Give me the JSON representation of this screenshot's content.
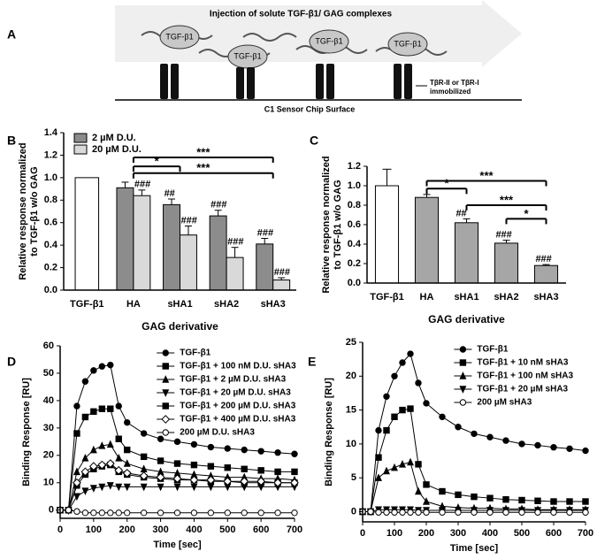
{
  "diagram": {
    "label": "A",
    "title": "Injection of solute TGF-β1/ GAG complexes",
    "molecules": [
      "TGF-β1",
      "TGF-β1",
      "TGF-β1",
      "TGF-β1"
    ],
    "receptor": [
      "TβR-II or TβR-I",
      "immobilized"
    ],
    "surface": "C1 Sensor Chip Surface"
  },
  "chart_data": [
    {
      "type": "bar",
      "label": "B",
      "ylabel": [
        "Relative response normalized",
        "to TGF-β1 w/o GAG"
      ],
      "xlabel": "GAG derivative",
      "categories": [
        "TGF-β1",
        "HA",
        "sHA1",
        "sHA2",
        "sHA3"
      ],
      "reference": {
        "value": 1.0,
        "color": "#ffffff"
      },
      "series": [
        {
          "name": "2 µM D.U.",
          "color": "#8c8c8c",
          "values": [
            null,
            0.91,
            0.76,
            0.66,
            0.41
          ],
          "errors": [
            null,
            0.05,
            0.05,
            0.05,
            0.05
          ],
          "annotations": [
            null,
            null,
            "##",
            "###",
            "###"
          ]
        },
        {
          "name": "20 µM D.U.",
          "color": "#d9d9d9",
          "values": [
            null,
            0.84,
            0.49,
            0.29,
            0.09
          ],
          "errors": [
            null,
            0.05,
            0.08,
            0.09,
            0.02
          ],
          "annotations": [
            null,
            "###",
            "###",
            "###",
            "###"
          ]
        }
      ],
      "significance": [
        "*",
        "***",
        "***"
      ],
      "ylim": [
        0,
        1.4
      ],
      "yticks": [
        {
          "value": 0,
          "label": "0.0"
        },
        {
          "value": 0.2,
          "label": "0.2"
        },
        {
          "value": 0.4,
          "label": "0.4"
        },
        {
          "value": 0.6,
          "label": "0.6"
        },
        {
          "value": 0.8,
          "label": "0.8"
        },
        {
          "value": 1.0,
          "label": "1.0"
        },
        {
          "value": 1.2,
          "label": "1.2"
        },
        {
          "value": 1.4,
          "label": "1.4"
        }
      ]
    },
    {
      "type": "bar",
      "label": "C",
      "ylabel": [
        "Relative response normalized",
        "to TGF-β1 w/o GAG"
      ],
      "xlabel": "GAG derivative",
      "categories": [
        "TGF-β1",
        "HA",
        "sHA1",
        "sHA2",
        "sHA3"
      ],
      "reference": {
        "value": 1.0,
        "error": 0.17,
        "color": "#ffffff"
      },
      "series": [
        {
          "color": "#a6a6a6",
          "values": [
            null,
            0.88,
            0.62,
            0.41,
            0.18
          ],
          "errors": [
            null,
            0.03,
            0.04,
            0.03,
            0.01
          ],
          "annotations": [
            null,
            null,
            "##",
            "###",
            "###"
          ]
        }
      ],
      "significance": [
        "***",
        "*",
        "***",
        "*"
      ],
      "ylim": [
        0,
        1.2
      ],
      "yticks": [
        {
          "value": 0,
          "label": "0.0"
        },
        {
          "value": 0.2,
          "label": "0.2"
        },
        {
          "value": 0.4,
          "label": "0.4"
        },
        {
          "value": 0.6,
          "label": "0.6"
        },
        {
          "value": 0.8,
          "label": "0.8"
        },
        {
          "value": 1.0,
          "label": "1.0"
        },
        {
          "value": 1.2,
          "label": "1.2"
        }
      ]
    },
    {
      "type": "line",
      "label": "D",
      "ylabel": "Binding Response [RU]",
      "xlabel": "Time [sec]",
      "x": [
        0,
        25,
        50,
        75,
        100,
        125,
        150,
        175,
        200,
        250,
        300,
        350,
        400,
        450,
        500,
        550,
        600,
        650,
        700
      ],
      "series": [
        {
          "name": "TGF-β1",
          "color": "#000000",
          "marker": "circle",
          "values": [
            0,
            0,
            38,
            47,
            51,
            52.5,
            53,
            38,
            32,
            28,
            26,
            25,
            24,
            23,
            22.5,
            22,
            21.5,
            21,
            20.5
          ]
        },
        {
          "name": "TGF-β1 + 100 nM D.U. sHA3",
          "color": "#000000",
          "marker": "square",
          "values": [
            0,
            0,
            28,
            34,
            36,
            37,
            37,
            26,
            22,
            19.5,
            18,
            17,
            16.5,
            16,
            15.5,
            15,
            14.5,
            14,
            14
          ]
        },
        {
          "name": "TGF-β1 + 2 µM D.U. sHA3",
          "color": "#000000",
          "marker": "triangle",
          "values": [
            0,
            0,
            14,
            19,
            22,
            23.5,
            24,
            19,
            17,
            15,
            14,
            13.5,
            13,
            12.5,
            12,
            12,
            11.5,
            11.5,
            11
          ]
        },
        {
          "name": "TGF-β1 + 20 µM D.U. sHA3",
          "color": "#000000",
          "marker": "triangle-down",
          "values": [
            0,
            0,
            5,
            7,
            8,
            8.5,
            9,
            8.5,
            8.5,
            8.5,
            8.5,
            8.5,
            8.5,
            8.5,
            8.5,
            8.5,
            8.5,
            8.5,
            8.5
          ]
        },
        {
          "name": "TGF-β1 + 200 µM D.U. sHA3",
          "color": "#000000",
          "marker": "square",
          "values": [
            0,
            0,
            9,
            13,
            15,
            16,
            16.5,
            14,
            13,
            12,
            11.5,
            11,
            11,
            10.5,
            10.5,
            10,
            10,
            10,
            10
          ]
        },
        {
          "name": "TGF-β1 + 400 µM D.U. sHA3",
          "color": "#000000",
          "marker": "diamond-open",
          "values": [
            0,
            0,
            10,
            14,
            16,
            16.5,
            17,
            14.5,
            13.5,
            12.5,
            12,
            11.5,
            11,
            11,
            10.5,
            10.5,
            10.5,
            10,
            10
          ]
        },
        {
          "name": "200 µM D.U. sHA3",
          "color": "#000000",
          "marker": "circle-open",
          "values": [
            0,
            0,
            -0.5,
            -1,
            -1,
            -1,
            -1,
            -1,
            -1,
            -1,
            -1,
            -1,
            -1,
            -1,
            -1,
            -1,
            -1,
            -1,
            -1
          ]
        }
      ],
      "xlim": [
        0,
        700
      ],
      "xticks": [
        0,
        100,
        200,
        300,
        400,
        500,
        600,
        700
      ],
      "ylim": [
        -3,
        60
      ],
      "yticks": [
        0,
        10,
        20,
        30,
        40,
        50,
        60
      ]
    },
    {
      "type": "line",
      "label": "E",
      "ylabel": "Binding Response [RU]",
      "xlabel": "Time [sec]",
      "x": [
        0,
        25,
        50,
        75,
        100,
        125,
        150,
        175,
        200,
        250,
        300,
        350,
        400,
        450,
        500,
        550,
        600,
        650,
        700
      ],
      "series": [
        {
          "name": "TGF-β1",
          "color": "#000000",
          "marker": "circle",
          "values": [
            0,
            0,
            12,
            17,
            20,
            22,
            23.3,
            19,
            16,
            14,
            12.5,
            11.5,
            11,
            10.5,
            10,
            9.8,
            9.5,
            9.3,
            9
          ]
        },
        {
          "name": "TGF-β1 + 10 nM sHA3",
          "color": "#000000",
          "marker": "square",
          "values": [
            0,
            0,
            8,
            12,
            14,
            15,
            15.2,
            7,
            4,
            3,
            2.5,
            2.2,
            2,
            1.8,
            1.7,
            1.6,
            1.5,
            1.5,
            1.5
          ]
        },
        {
          "name": "TGF-β1 + 100 nM sHA3",
          "color": "#000000",
          "marker": "triangle",
          "values": [
            0,
            0,
            5,
            6,
            6.5,
            7,
            7.3,
            3,
            1.5,
            0.8,
            0.6,
            0.5,
            0.5,
            0.4,
            0.4,
            0.3,
            0.3,
            0.3,
            0.3
          ]
        },
        {
          "name": "TGF-β1 + 20 µM sHA3",
          "color": "#000000",
          "marker": "triangle-down",
          "values": [
            0,
            0,
            0.3,
            0.3,
            0.3,
            0.3,
            0.3,
            0.2,
            0.2,
            0.2,
            0.2,
            0.2,
            0.2,
            0.2,
            0.2,
            0.2,
            0.2,
            0.2,
            0.2
          ]
        },
        {
          "name": "200 µM sHA3",
          "color": "#000000",
          "marker": "circle-open",
          "values": [
            0,
            0,
            -0.1,
            -0.1,
            -0.1,
            -0.1,
            -0.1,
            -0.1,
            -0.1,
            -0.1,
            -0.1,
            -0.1,
            -0.1,
            -0.1,
            -0.1,
            -0.1,
            -0.1,
            -0.1,
            -0.1
          ]
        }
      ],
      "xlim": [
        0,
        700
      ],
      "xticks": [
        0,
        100,
        200,
        300,
        400,
        500,
        600,
        700
      ],
      "ylim": [
        -1.5,
        25
      ],
      "yticks": [
        0,
        5,
        10,
        15,
        20,
        25
      ]
    }
  ]
}
